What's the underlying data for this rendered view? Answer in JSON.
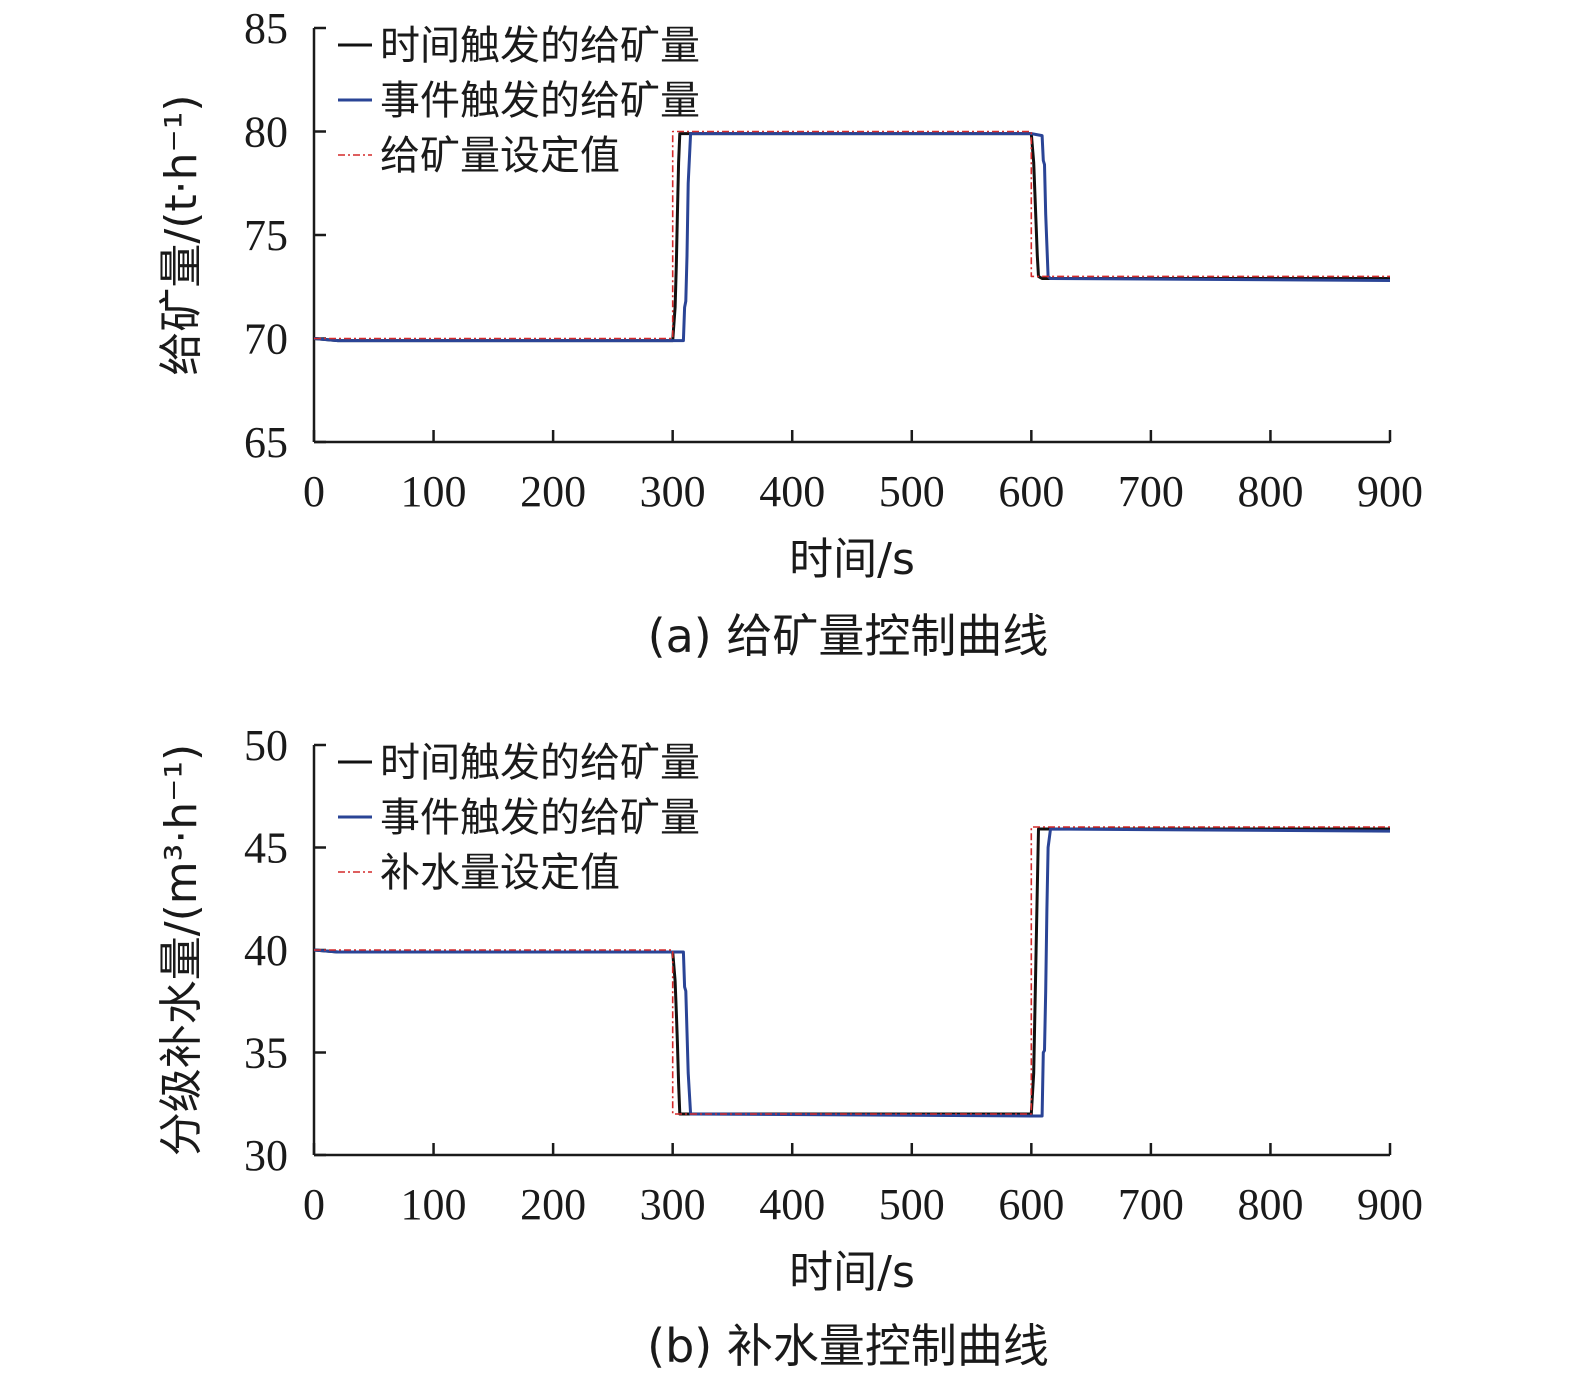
{
  "chart_data": [
    {
      "type": "line",
      "caption": "(a) 给矿量控制曲线",
      "xlabel": "时间/s",
      "ylabel": "给矿量/(t·h⁻¹)",
      "xlim": [
        0,
        900
      ],
      "ylim": [
        65,
        85
      ],
      "xticks": [
        "0",
        "100",
        "200",
        "300",
        "400",
        "500",
        "600",
        "700",
        "800",
        "900"
      ],
      "yticks": [
        "65",
        "70",
        "75",
        "80",
        "85"
      ],
      "legend_position": "top-left",
      "series": [
        {
          "name": "时间触发的给矿量",
          "color": "#111111",
          "style": "solid",
          "x": [
            0,
            20,
            300,
            302,
            303,
            304,
            305,
            306,
            310,
            600,
            602,
            603,
            604,
            605,
            606,
            609,
            900
          ],
          "y": [
            70,
            69.9,
            69.9,
            71.5,
            73.5,
            76,
            78.5,
            79.9,
            79.9,
            79.9,
            78.5,
            77,
            75.5,
            74,
            73,
            72.9,
            72.9
          ]
        },
        {
          "name": "事件触发的给矿量",
          "color": "#2a4496",
          "style": "solid",
          "x": [
            0,
            20,
            309,
            310,
            311,
            312,
            313,
            315,
            600,
            609,
            610,
            611,
            612,
            613,
            614,
            616,
            900
          ],
          "y": [
            70,
            69.9,
            69.9,
            71.5,
            71.8,
            74,
            77.5,
            79.9,
            79.9,
            79.8,
            78.6,
            78.4,
            76,
            74.5,
            73,
            72.9,
            72.8
          ]
        },
        {
          "name": "给矿量设定值",
          "color": "#d42a2a",
          "style": "dashdot",
          "x": [
            0,
            300,
            300,
            600,
            600,
            900
          ],
          "y": [
            70,
            70,
            80,
            80,
            73,
            73
          ]
        }
      ]
    },
    {
      "type": "line",
      "caption": "(b) 补水量控制曲线",
      "xlabel": "时间/s",
      "ylabel": "分级补水量/(m³·h⁻¹)",
      "xlim": [
        0,
        900
      ],
      "ylim": [
        30,
        50
      ],
      "xticks": [
        "0",
        "100",
        "200",
        "300",
        "400",
        "500",
        "600",
        "700",
        "800",
        "900"
      ],
      "yticks": [
        "30",
        "35",
        "40",
        "45",
        "50"
      ],
      "legend_position": "top-left",
      "series": [
        {
          "name": "时间触发的给矿量",
          "color": "#111111",
          "style": "solid",
          "x": [
            0,
            20,
            300,
            302,
            303,
            304,
            305,
            306,
            310,
            600,
            602,
            603,
            604,
            605,
            606,
            610,
            900
          ],
          "y": [
            40,
            39.9,
            39.9,
            38.5,
            37,
            35.5,
            33.5,
            32.0,
            32.0,
            32.0,
            34,
            37,
            40,
            43,
            45.9,
            45.9,
            45.9
          ]
        },
        {
          "name": "事件触发的给矿量",
          "color": "#2a4496",
          "style": "solid",
          "x": [
            0,
            20,
            309,
            310,
            311,
            312,
            313,
            315,
            600,
            609,
            610,
            611,
            612,
            613,
            614,
            616,
            900
          ],
          "y": [
            40,
            39.9,
            39.9,
            38.2,
            38.0,
            36,
            34,
            32.0,
            31.9,
            31.9,
            35,
            35.1,
            38,
            42,
            45,
            45.9,
            45.8
          ]
        },
        {
          "name": "补水量设定值",
          "color": "#d42a2a",
          "style": "dashdot",
          "x": [
            0,
            300,
            300,
            600,
            600,
            900
          ],
          "y": [
            40,
            40,
            32,
            32,
            46,
            46
          ]
        }
      ]
    }
  ]
}
